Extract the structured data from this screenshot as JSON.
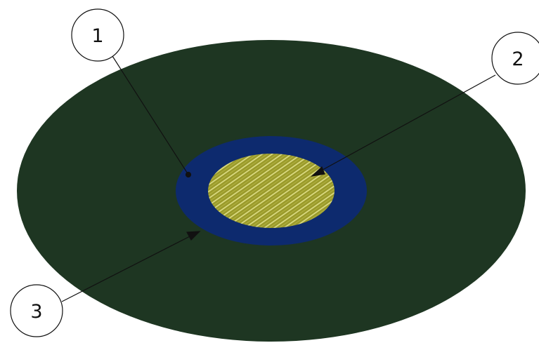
{
  "colors": {
    "background": "#ffffff",
    "outer_disc": "#1e3622",
    "ring": "#0d2a6e",
    "center_fill": "#9a9a2a",
    "center_hatch": "#d8d86a",
    "callout_stroke": "#111111",
    "callout_fill": "#ffffff"
  },
  "callouts": [
    {
      "id": "callout-1",
      "label": "1"
    },
    {
      "id": "callout-2",
      "label": "2"
    },
    {
      "id": "callout-3",
      "label": "3"
    }
  ]
}
